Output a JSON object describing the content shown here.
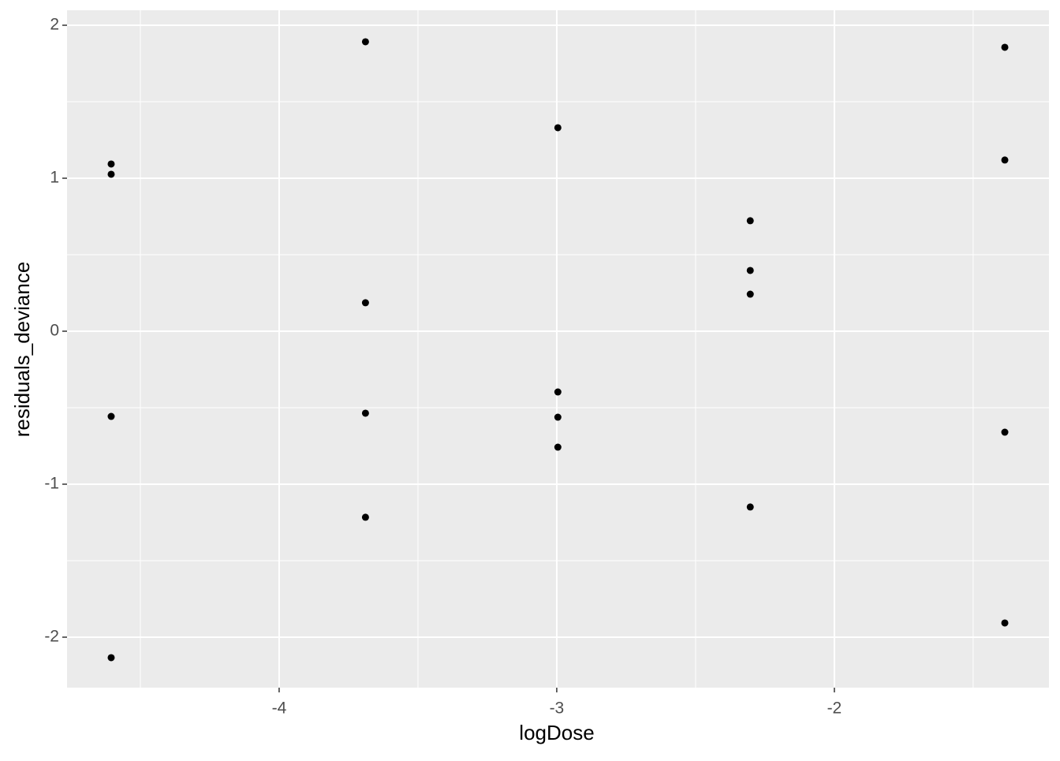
{
  "chart_data": {
    "type": "scatter",
    "x_label": "logDose",
    "y_label": "residuals_deviance",
    "series": [
      {
        "color": "#000000",
        "x": [
          -4.605,
          -4.605,
          -4.605,
          -4.605,
          -3.689,
          -3.689,
          -3.689,
          -3.689,
          -2.996,
          -2.996,
          -2.996,
          -2.996,
          -2.303,
          -2.303,
          -2.303,
          -2.303,
          -1.386,
          -1.386,
          -1.386,
          -1.386
        ],
        "values": [
          1.093,
          1.026,
          -0.557,
          -2.134,
          1.892,
          0.186,
          -0.536,
          -1.216,
          1.33,
          -0.397,
          -0.562,
          -0.758,
          0.722,
          0.397,
          0.242,
          -1.149,
          1.856,
          1.119,
          -0.66,
          -1.907
        ]
      }
    ],
    "xlim": [
      -4.764,
      -1.227
    ],
    "ylim": [
      -2.33,
      2.098
    ],
    "xticks": [
      -4,
      -3,
      -2
    ],
    "yticks": [
      -2,
      -1,
      0,
      1,
      2
    ],
    "xminor": [
      -4.5,
      -3.5,
      -2.5,
      -1.5
    ],
    "yminor": [
      -1.5,
      -0.5,
      0.5,
      1.5
    ],
    "grid": true
  }
}
